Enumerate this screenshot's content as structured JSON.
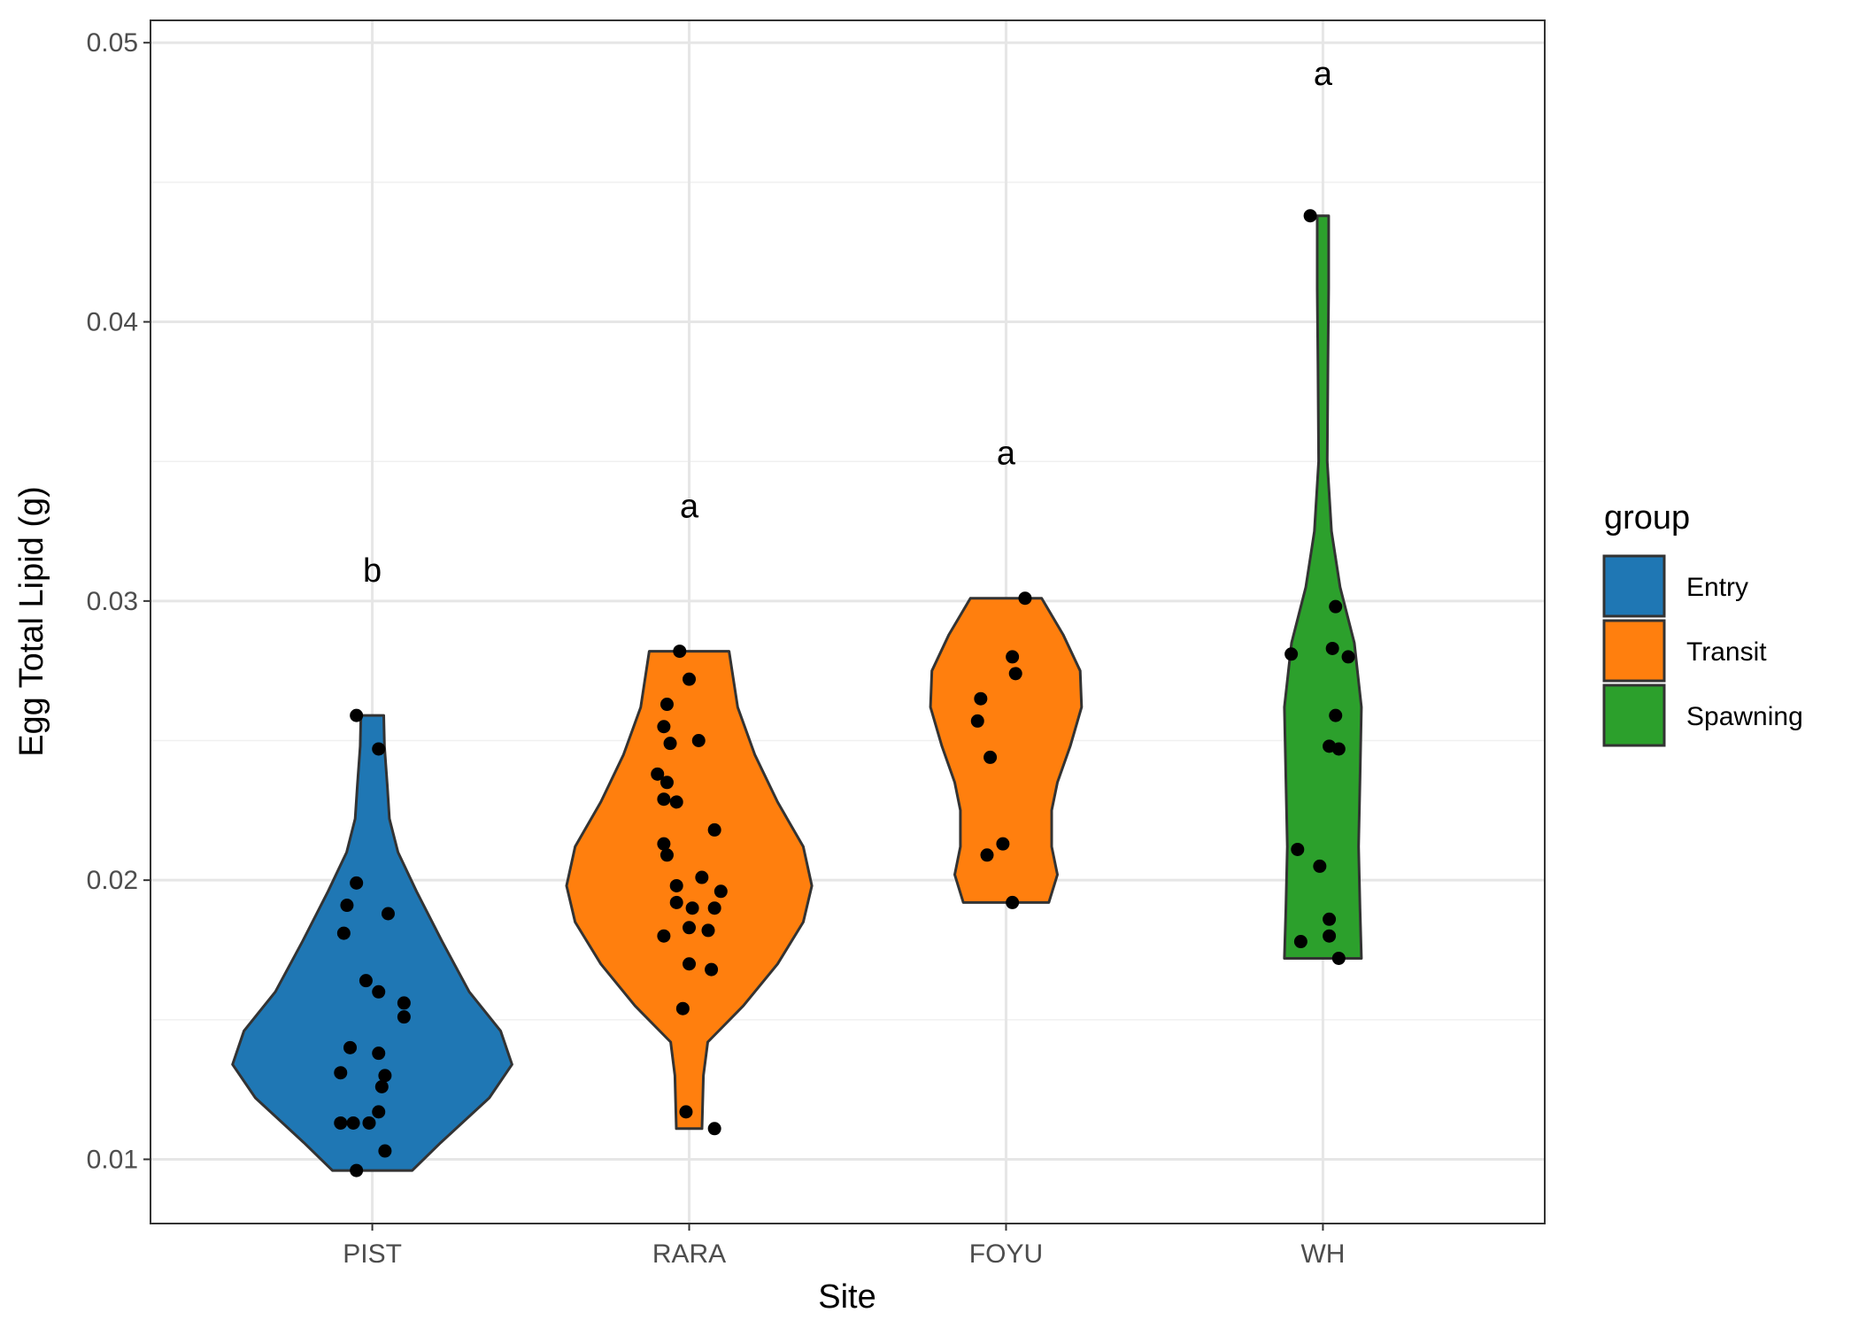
{
  "chart_data": {
    "type": "violin",
    "xlabel": "Site",
    "ylabel": "Egg Total Lipid (g)",
    "ylim": [
      0.0077,
      0.0508
    ],
    "yticks": [
      0.01,
      0.02,
      0.03,
      0.04,
      0.05
    ],
    "ytick_labels": [
      "0.01",
      "0.02",
      "0.03",
      "0.04",
      "0.05"
    ],
    "grid": true,
    "legend": {
      "title": "group",
      "position": "right",
      "entries": [
        {
          "label": "Entry",
          "color": "#1F77B4"
        },
        {
          "label": "Transit",
          "color": "#FF7F0E"
        },
        {
          "label": "Spawning",
          "color": "#2CA02C"
        }
      ]
    },
    "categories": [
      "PIST",
      "RARA",
      "FOYU",
      "WH"
    ],
    "groups": [
      {
        "site": "PIST",
        "group": "Entry",
        "letter": "b",
        "letter_y": 0.0311,
        "range": [
          0.0096,
          0.0259
        ],
        "profile": [
          [
            0.0096,
            0.28
          ],
          [
            0.0106,
            0.48
          ],
          [
            0.0122,
            0.82
          ],
          [
            0.0134,
            0.98
          ],
          [
            0.0146,
            0.9
          ],
          [
            0.016,
            0.68
          ],
          [
            0.0178,
            0.49
          ],
          [
            0.0196,
            0.31
          ],
          [
            0.021,
            0.18
          ],
          [
            0.0222,
            0.12
          ],
          [
            0.0234,
            0.105
          ],
          [
            0.0248,
            0.085
          ],
          [
            0.0259,
            0.08
          ]
        ],
        "points": [
          [
            -0.05,
            0.0096
          ],
          [
            0.04,
            0.0103
          ],
          [
            -0.1,
            0.0113
          ],
          [
            -0.06,
            0.0113
          ],
          [
            -0.01,
            0.0113
          ],
          [
            0.02,
            0.0117
          ],
          [
            0.03,
            0.0126
          ],
          [
            0.04,
            0.013
          ],
          [
            -0.1,
            0.0131
          ],
          [
            0.02,
            0.0138
          ],
          [
            -0.07,
            0.014
          ],
          [
            0.1,
            0.0151
          ],
          [
            0.1,
            0.0156
          ],
          [
            0.02,
            0.016
          ],
          [
            -0.02,
            0.0164
          ],
          [
            -0.09,
            0.0181
          ],
          [
            0.05,
            0.0188
          ],
          [
            -0.08,
            0.0191
          ],
          [
            -0.05,
            0.0199
          ],
          [
            0.02,
            0.0247
          ],
          [
            -0.05,
            0.0259
          ]
        ]
      },
      {
        "site": "RARA",
        "group": "Transit",
        "letter": "a",
        "letter_y": 0.0334,
        "range": [
          0.0111,
          0.0282
        ],
        "profile": [
          [
            0.0111,
            0.09
          ],
          [
            0.013,
            0.1
          ],
          [
            0.0142,
            0.13
          ],
          [
            0.0155,
            0.38
          ],
          [
            0.017,
            0.62
          ],
          [
            0.0185,
            0.8
          ],
          [
            0.0198,
            0.86
          ],
          [
            0.0212,
            0.8
          ],
          [
            0.0228,
            0.62
          ],
          [
            0.0245,
            0.46
          ],
          [
            0.0262,
            0.34
          ],
          [
            0.0282,
            0.28
          ]
        ],
        "points": [
          [
            0.08,
            0.0111
          ],
          [
            -0.01,
            0.0117
          ],
          [
            -0.02,
            0.0154
          ],
          [
            0.07,
            0.0168
          ],
          [
            0.0,
            0.017
          ],
          [
            -0.08,
            0.018
          ],
          [
            0.06,
            0.0182
          ],
          [
            0.0,
            0.0183
          ],
          [
            0.08,
            0.019
          ],
          [
            0.01,
            0.019
          ],
          [
            -0.04,
            0.0192
          ],
          [
            0.1,
            0.0196
          ],
          [
            -0.04,
            0.0198
          ],
          [
            0.04,
            0.0201
          ],
          [
            -0.07,
            0.0209
          ],
          [
            -0.08,
            0.0213
          ],
          [
            0.08,
            0.0218
          ],
          [
            -0.08,
            0.0229
          ],
          [
            -0.04,
            0.0228
          ],
          [
            -0.07,
            0.0235
          ],
          [
            -0.1,
            0.0238
          ],
          [
            -0.06,
            0.0249
          ],
          [
            0.03,
            0.025
          ],
          [
            -0.08,
            0.0255
          ],
          [
            -0.07,
            0.0263
          ],
          [
            0.0,
            0.0272
          ],
          [
            -0.03,
            0.0282
          ]
        ]
      },
      {
        "site": "FOYU",
        "group": "Transit",
        "letter": "a",
        "letter_y": 0.0353,
        "range": [
          0.0192,
          0.0301
        ],
        "profile": [
          [
            0.0192,
            0.3
          ],
          [
            0.0202,
            0.36
          ],
          [
            0.0212,
            0.32
          ],
          [
            0.0225,
            0.32
          ],
          [
            0.0235,
            0.36
          ],
          [
            0.0248,
            0.45
          ],
          [
            0.0262,
            0.53
          ],
          [
            0.0275,
            0.52
          ],
          [
            0.0288,
            0.4
          ],
          [
            0.0301,
            0.25
          ]
        ],
        "points": [
          [
            0.02,
            0.0192
          ],
          [
            -0.06,
            0.0209
          ],
          [
            -0.01,
            0.0213
          ],
          [
            -0.05,
            0.0244
          ],
          [
            -0.09,
            0.0257
          ],
          [
            -0.08,
            0.0265
          ],
          [
            0.03,
            0.0274
          ],
          [
            0.02,
            0.028
          ],
          [
            0.06,
            0.0301
          ]
        ]
      },
      {
        "site": "WH",
        "group": "Spawning",
        "letter": "a",
        "letter_y": 0.0489,
        "range": [
          0.0172,
          0.0438
        ],
        "profile": [
          [
            0.0172,
            0.27
          ],
          [
            0.019,
            0.26
          ],
          [
            0.0212,
            0.25
          ],
          [
            0.0236,
            0.26
          ],
          [
            0.0262,
            0.27
          ],
          [
            0.0285,
            0.22
          ],
          [
            0.0305,
            0.12
          ],
          [
            0.0325,
            0.06
          ],
          [
            0.035,
            0.03
          ],
          [
            0.0385,
            0.035
          ],
          [
            0.0412,
            0.04
          ],
          [
            0.0438,
            0.04
          ]
        ],
        "points": [
          [
            -0.07,
            0.0178
          ],
          [
            0.05,
            0.0172
          ],
          [
            0.02,
            0.018
          ],
          [
            0.02,
            0.0186
          ],
          [
            -0.01,
            0.0205
          ],
          [
            -0.08,
            0.0211
          ],
          [
            0.05,
            0.0247
          ],
          [
            0.02,
            0.0248
          ],
          [
            0.04,
            0.0259
          ],
          [
            -0.1,
            0.0281
          ],
          [
            0.08,
            0.028
          ],
          [
            0.03,
            0.0283
          ],
          [
            0.04,
            0.0298
          ],
          [
            -0.04,
            0.0438
          ]
        ]
      }
    ]
  }
}
